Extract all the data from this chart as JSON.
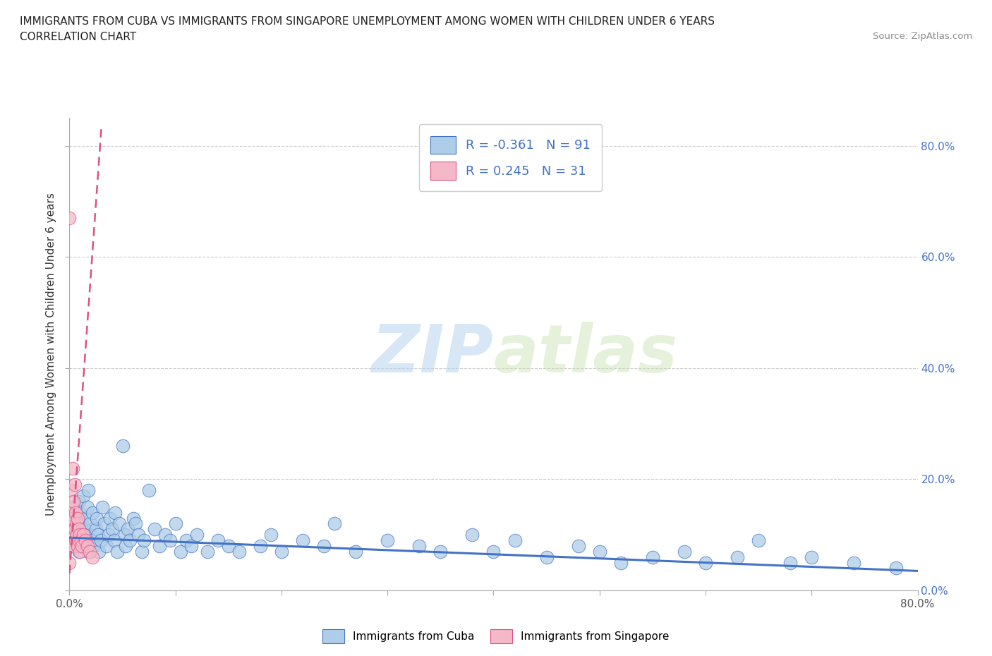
{
  "title_line1": "IMMIGRANTS FROM CUBA VS IMMIGRANTS FROM SINGAPORE UNEMPLOYMENT AMONG WOMEN WITH CHILDREN UNDER 6 YEARS",
  "title_line2": "CORRELATION CHART",
  "source_text": "Source: ZipAtlas.com",
  "ylabel": "Unemployment Among Women with Children Under 6 years",
  "xmin": 0.0,
  "xmax": 0.8,
  "ymin": 0.0,
  "ymax": 0.85,
  "cuba_color": "#aecde8",
  "cuba_edge_color": "#4472c4",
  "singapore_color": "#f4b8c8",
  "singapore_edge_color": "#e05080",
  "cuba_R": -0.361,
  "cuba_N": 91,
  "singapore_R": 0.245,
  "singapore_N": 31,
  "watermark_zip": "ZIP",
  "watermark_atlas": "atlas",
  "cuba_trend_x": [
    0.0,
    0.8
  ],
  "cuba_trend_y": [
    0.095,
    0.035
  ],
  "sing_trend_x": [
    0.0,
    0.03
  ],
  "sing_trend_y": [
    0.03,
    0.83
  ],
  "cuba_scatter_x": [
    0.002,
    0.003,
    0.005,
    0.005,
    0.007,
    0.007,
    0.008,
    0.009,
    0.009,
    0.01,
    0.01,
    0.011,
    0.012,
    0.013,
    0.013,
    0.014,
    0.015,
    0.016,
    0.017,
    0.018,
    0.018,
    0.019,
    0.02,
    0.021,
    0.022,
    0.023,
    0.025,
    0.026,
    0.027,
    0.028,
    0.03,
    0.031,
    0.033,
    0.035,
    0.037,
    0.038,
    0.04,
    0.042,
    0.043,
    0.045,
    0.047,
    0.05,
    0.052,
    0.053,
    0.055,
    0.057,
    0.06,
    0.062,
    0.065,
    0.068,
    0.07,
    0.075,
    0.08,
    0.085,
    0.09,
    0.095,
    0.1,
    0.105,
    0.11,
    0.115,
    0.12,
    0.13,
    0.14,
    0.15,
    0.16,
    0.18,
    0.19,
    0.2,
    0.22,
    0.24,
    0.25,
    0.27,
    0.3,
    0.33,
    0.35,
    0.38,
    0.4,
    0.42,
    0.45,
    0.48,
    0.5,
    0.52,
    0.55,
    0.58,
    0.6,
    0.63,
    0.65,
    0.68,
    0.7,
    0.74,
    0.78
  ],
  "cuba_scatter_y": [
    0.09,
    0.12,
    0.1,
    0.15,
    0.08,
    0.13,
    0.11,
    0.16,
    0.07,
    0.09,
    0.14,
    0.12,
    0.1,
    0.08,
    0.17,
    0.11,
    0.13,
    0.09,
    0.15,
    0.07,
    0.18,
    0.1,
    0.12,
    0.09,
    0.14,
    0.08,
    0.11,
    0.13,
    0.1,
    0.07,
    0.09,
    0.15,
    0.12,
    0.08,
    0.1,
    0.13,
    0.11,
    0.09,
    0.14,
    0.07,
    0.12,
    0.26,
    0.1,
    0.08,
    0.11,
    0.09,
    0.13,
    0.12,
    0.1,
    0.07,
    0.09,
    0.18,
    0.11,
    0.08,
    0.1,
    0.09,
    0.12,
    0.07,
    0.09,
    0.08,
    0.1,
    0.07,
    0.09,
    0.08,
    0.07,
    0.08,
    0.1,
    0.07,
    0.09,
    0.08,
    0.12,
    0.07,
    0.09,
    0.08,
    0.07,
    0.1,
    0.07,
    0.09,
    0.06,
    0.08,
    0.07,
    0.05,
    0.06,
    0.07,
    0.05,
    0.06,
    0.09,
    0.05,
    0.06,
    0.05,
    0.04
  ],
  "singapore_scatter_x": [
    0.0,
    0.0,
    0.0,
    0.001,
    0.001,
    0.002,
    0.002,
    0.003,
    0.003,
    0.003,
    0.004,
    0.004,
    0.005,
    0.005,
    0.006,
    0.006,
    0.007,
    0.007,
    0.008,
    0.008,
    0.009,
    0.009,
    0.01,
    0.01,
    0.011,
    0.012,
    0.013,
    0.015,
    0.017,
    0.019,
    0.022
  ],
  "singapore_scatter_y": [
    0.67,
    0.14,
    0.05,
    0.12,
    0.18,
    0.09,
    0.15,
    0.08,
    0.13,
    0.22,
    0.1,
    0.16,
    0.11,
    0.19,
    0.09,
    0.14,
    0.1,
    0.12,
    0.08,
    0.13,
    0.11,
    0.09,
    0.1,
    0.07,
    0.09,
    0.08,
    0.1,
    0.09,
    0.08,
    0.07,
    0.06
  ]
}
